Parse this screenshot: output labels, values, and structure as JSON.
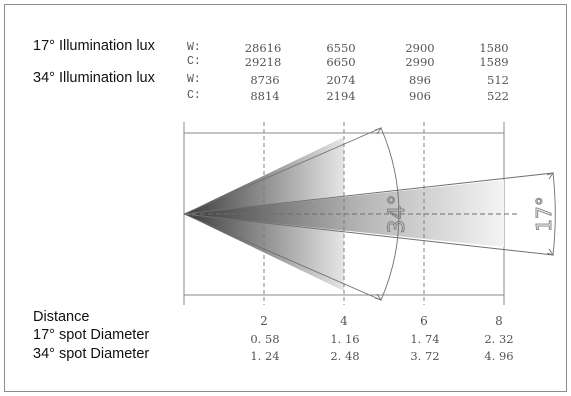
{
  "illumination": {
    "rows": [
      {
        "label": "17° Illumination lux",
        "w_code": "W:",
        "c_code": "C:",
        "w": [
          "28616",
          "6550",
          "2900",
          "1580"
        ],
        "c": [
          "29218",
          "6650",
          "2990",
          "1589"
        ]
      },
      {
        "label": "34° Illumination lux",
        "w_code": "W:",
        "c_code": "C:",
        "w": [
          "8736",
          "2074",
          "896",
          "512"
        ],
        "c": [
          "8814",
          "2194",
          "906",
          "522"
        ]
      }
    ]
  },
  "diagram": {
    "angle_wide": "34°",
    "angle_narrow": "17°",
    "distance_ticks": [
      "2",
      "4",
      "6",
      "8"
    ]
  },
  "spot": {
    "distance_label": "Distance",
    "rows": [
      {
        "label": "17° spot Diameter",
        "values": [
          "0. 58",
          "1. 16",
          "1. 74",
          "2. 32"
        ]
      },
      {
        "label": "34° spot Diameter",
        "values": [
          "1. 24",
          "2. 48",
          "3. 72",
          "4. 96"
        ]
      }
    ]
  },
  "colors": {
    "beam_dark": "#3a3a3a",
    "beam_light": "#f2f2f2",
    "line": "#6e6e6e",
    "border": "#8c8c8c"
  }
}
